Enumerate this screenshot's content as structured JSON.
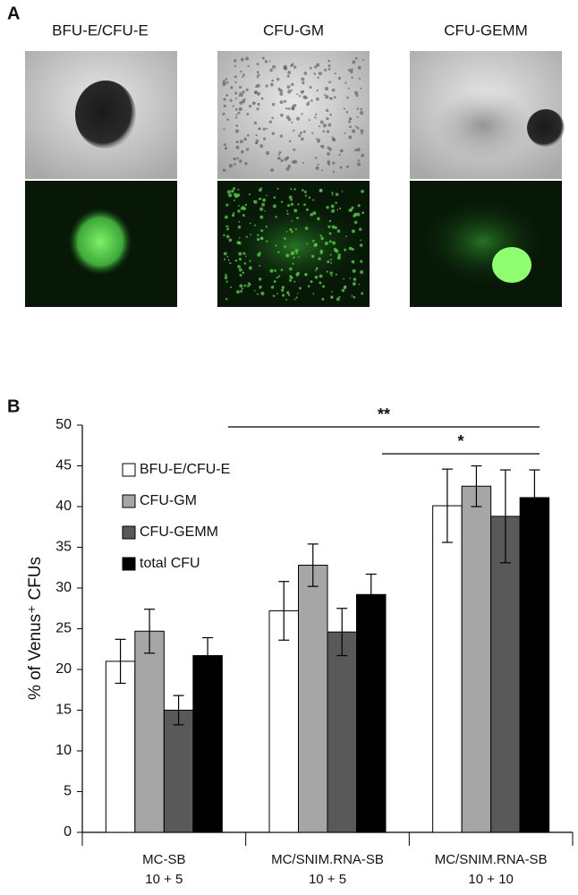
{
  "figure": {
    "panel_a_label": "A",
    "panel_a_columns": [
      "BFU-E/CFU-E",
      "CFU-GM",
      "CFU-GEMM"
    ],
    "panel_b_label": "B"
  },
  "chart_data": {
    "type": "bar",
    "y_label": "% of Venus⁺ CFUs",
    "categories": [
      "MC-SB\n10 + 5",
      "MC/SNIM.RNA-SB\n10 + 5",
      "MC/SNIM.RNA-SB\n10 + 10"
    ],
    "series": [
      {
        "name": "BFU-E/CFU-E",
        "color": "#ffffff",
        "values": [
          21,
          27.2,
          40.1
        ],
        "errors": [
          2.7,
          3.6,
          4.5
        ]
      },
      {
        "name": "CFU-GM",
        "color": "#a6a6a6",
        "values": [
          24.7,
          32.8,
          42.5
        ],
        "errors": [
          2.7,
          2.6,
          2.5
        ]
      },
      {
        "name": "CFU-GEMM",
        "color": "#595959",
        "values": [
          15,
          24.6,
          38.8
        ],
        "errors": [
          1.8,
          2.9,
          5.7
        ]
      },
      {
        "name": "total CFU",
        "color": "#000000",
        "values": [
          21.7,
          29.2,
          41.1
        ],
        "errors": [
          2.2,
          2.5,
          3.4
        ]
      }
    ],
    "annotations": [
      "**",
      "*"
    ],
    "ylim": [
      0,
      50
    ],
    "yticks": [
      0,
      5,
      10,
      15,
      20,
      25,
      30,
      35,
      40,
      45,
      50
    ],
    "legend": "upper-left"
  }
}
